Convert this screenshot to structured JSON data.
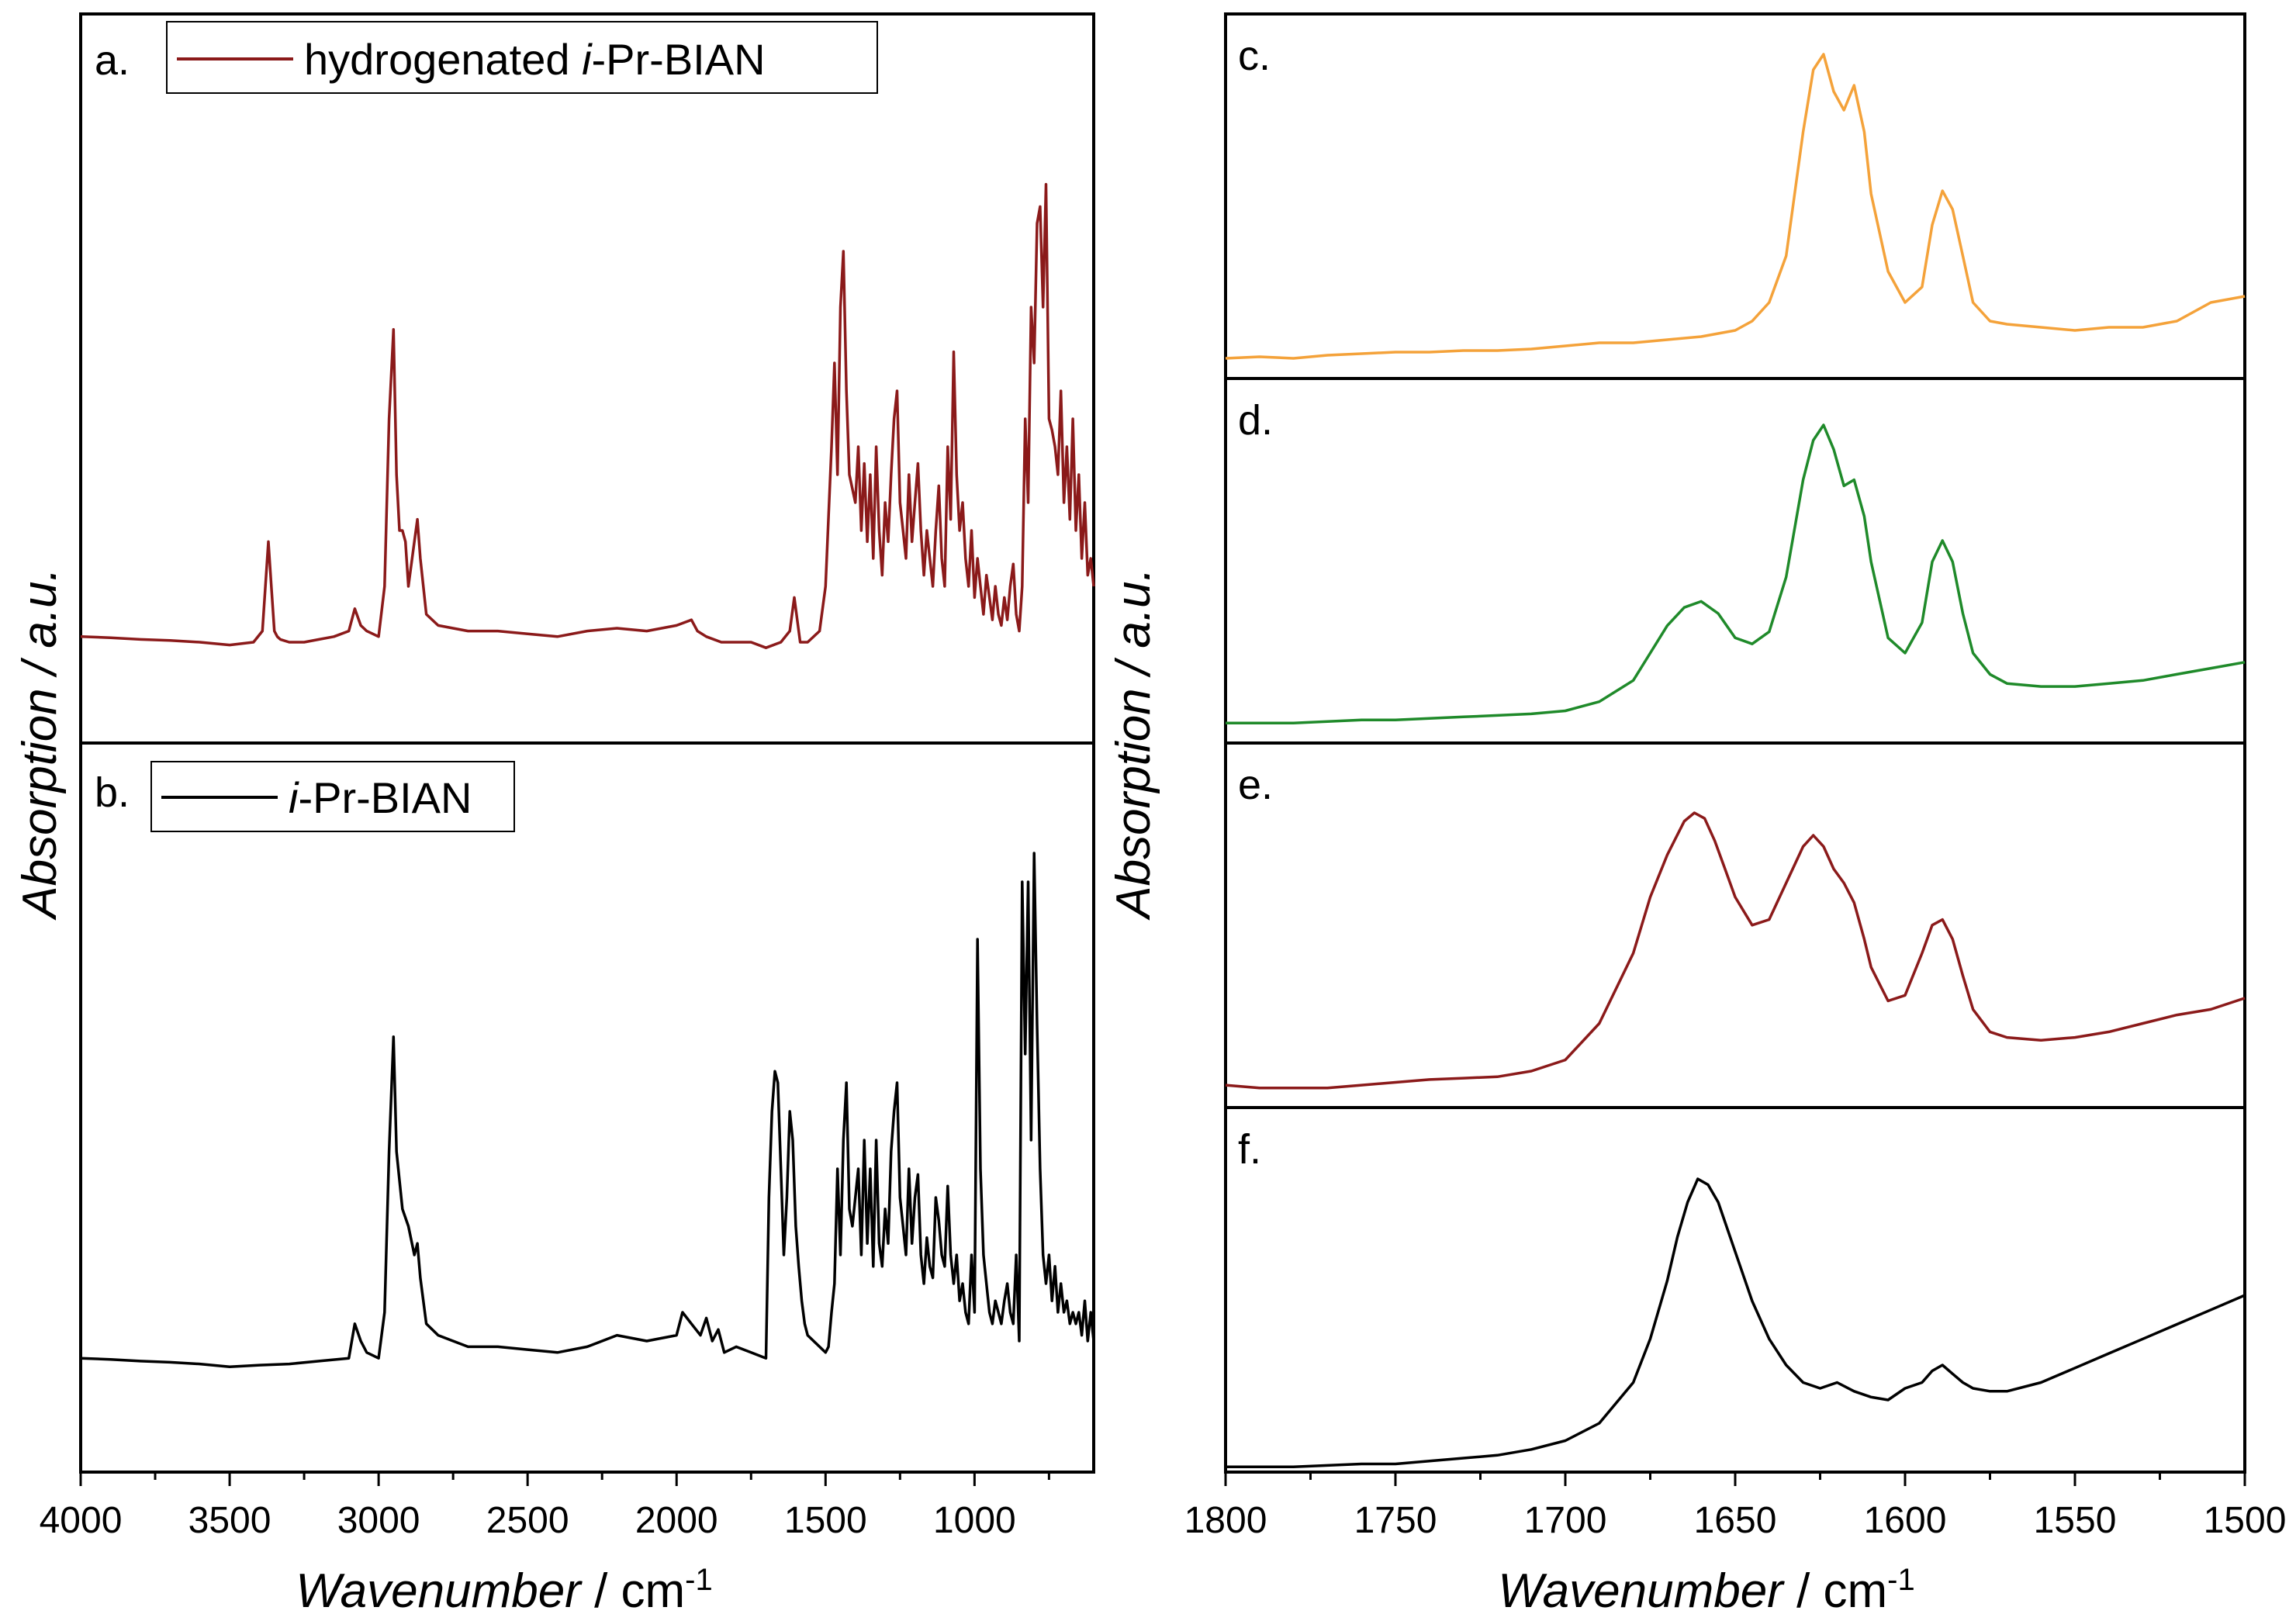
{
  "figure": {
    "left_ylabel": "Absorption / a.u.",
    "right_ylabel": "Absorption / a.u.",
    "left_xlabel_italic": "Wavenumber",
    "left_xlabel_rest": " / cm",
    "left_xlabel_sup": "-1",
    "right_xlabel_italic": "Wavenumber",
    "right_xlabel_rest": " / cm",
    "right_xlabel_sup": "-1"
  },
  "chart_data": [
    {
      "panel": "a.",
      "type": "line",
      "legend": {
        "prefix": "hydrogenated ",
        "italic": "i",
        "suffix": "-Pr-BIAN"
      },
      "color": "#8b1a1a",
      "xlim": [
        4000,
        600
      ],
      "ylim": [
        0,
        1
      ],
      "x": [
        4000,
        3900,
        3800,
        3700,
        3600,
        3500,
        3420,
        3390,
        3370,
        3360,
        3350,
        3340,
        3330,
        3300,
        3250,
        3200,
        3150,
        3100,
        3080,
        3060,
        3040,
        3000,
        2980,
        2965,
        2950,
        2940,
        2930,
        2920,
        2910,
        2900,
        2880,
        2870,
        2860,
        2840,
        2800,
        2750,
        2700,
        2600,
        2500,
        2400,
        2300,
        2200,
        2100,
        2000,
        1950,
        1930,
        1900,
        1850,
        1800,
        1750,
        1700,
        1650,
        1620,
        1605,
        1595,
        1585,
        1560,
        1520,
        1500,
        1480,
        1470,
        1460,
        1450,
        1440,
        1430,
        1420,
        1400,
        1390,
        1380,
        1370,
        1360,
        1350,
        1340,
        1330,
        1320,
        1310,
        1300,
        1290,
        1280,
        1270,
        1260,
        1250,
        1240,
        1230,
        1220,
        1210,
        1200,
        1190,
        1180,
        1170,
        1160,
        1150,
        1140,
        1130,
        1120,
        1110,
        1100,
        1090,
        1080,
        1070,
        1060,
        1050,
        1040,
        1030,
        1020,
        1010,
        1000,
        990,
        980,
        970,
        960,
        950,
        940,
        930,
        920,
        910,
        900,
        890,
        880,
        870,
        860,
        850,
        840,
        830,
        820,
        810,
        800,
        790,
        780,
        770,
        760,
        750,
        740,
        730,
        720,
        710,
        700,
        690,
        680,
        670,
        660,
        650,
        640,
        630,
        620,
        610,
        600
      ],
      "values": [
        0.11,
        0.108,
        0.105,
        0.103,
        0.1,
        0.095,
        0.1,
        0.12,
        0.28,
        0.2,
        0.12,
        0.11,
        0.105,
        0.1,
        0.1,
        0.105,
        0.11,
        0.12,
        0.16,
        0.13,
        0.12,
        0.11,
        0.2,
        0.5,
        0.66,
        0.4,
        0.3,
        0.3,
        0.28,
        0.2,
        0.28,
        0.32,
        0.25,
        0.15,
        0.13,
        0.125,
        0.12,
        0.12,
        0.115,
        0.11,
        0.12,
        0.125,
        0.12,
        0.13,
        0.14,
        0.12,
        0.11,
        0.1,
        0.1,
        0.1,
        0.09,
        0.1,
        0.12,
        0.18,
        0.14,
        0.1,
        0.1,
        0.12,
        0.2,
        0.45,
        0.6,
        0.4,
        0.7,
        0.8,
        0.55,
        0.4,
        0.35,
        0.45,
        0.3,
        0.42,
        0.28,
        0.4,
        0.25,
        0.45,
        0.3,
        0.22,
        0.35,
        0.28,
        0.4,
        0.5,
        0.55,
        0.35,
        0.3,
        0.25,
        0.4,
        0.28,
        0.35,
        0.42,
        0.3,
        0.22,
        0.3,
        0.25,
        0.2,
        0.3,
        0.38,
        0.25,
        0.2,
        0.45,
        0.32,
        0.62,
        0.4,
        0.3,
        0.35,
        0.25,
        0.2,
        0.3,
        0.18,
        0.25,
        0.2,
        0.15,
        0.22,
        0.18,
        0.14,
        0.2,
        0.15,
        0.13,
        0.18,
        0.14,
        0.2,
        0.24,
        0.15,
        0.12,
        0.2,
        0.5,
        0.35,
        0.7,
        0.6,
        0.85,
        0.88,
        0.7,
        0.92,
        0.5,
        0.48,
        0.45,
        0.4,
        0.55,
        0.35,
        0.45,
        0.32,
        0.5,
        0.3,
        0.4,
        0.25,
        0.35,
        0.22,
        0.25,
        0.2
      ]
    },
    {
      "panel": "b.",
      "type": "line",
      "legend": {
        "prefix": "",
        "italic": "i",
        "suffix": "-Pr-BIAN"
      },
      "color": "#000000",
      "xlim": [
        4000,
        600
      ],
      "ylim": [
        0,
        1
      ],
      "x": [
        4000,
        3900,
        3800,
        3700,
        3600,
        3500,
        3400,
        3300,
        3200,
        3100,
        3080,
        3060,
        3040,
        3000,
        2980,
        2965,
        2950,
        2940,
        2920,
        2900,
        2880,
        2870,
        2860,
        2840,
        2800,
        2750,
        2700,
        2600,
        2500,
        2400,
        2300,
        2200,
        2100,
        2000,
        1980,
        1950,
        1920,
        1900,
        1880,
        1860,
        1840,
        1800,
        1750,
        1700,
        1690,
        1680,
        1670,
        1660,
        1650,
        1640,
        1630,
        1620,
        1610,
        1600,
        1590,
        1580,
        1570,
        1560,
        1540,
        1520,
        1500,
        1490,
        1480,
        1470,
        1460,
        1450,
        1440,
        1430,
        1420,
        1410,
        1400,
        1390,
        1380,
        1370,
        1360,
        1350,
        1340,
        1330,
        1320,
        1310,
        1300,
        1290,
        1280,
        1270,
        1260,
        1250,
        1240,
        1230,
        1220,
        1210,
        1200,
        1190,
        1180,
        1170,
        1160,
        1150,
        1140,
        1130,
        1120,
        1110,
        1100,
        1090,
        1080,
        1070,
        1060,
        1050,
        1040,
        1030,
        1020,
        1010,
        1000,
        990,
        980,
        970,
        960,
        950,
        940,
        930,
        920,
        910,
        900,
        890,
        880,
        870,
        860,
        850,
        840,
        830,
        820,
        810,
        800,
        790,
        780,
        770,
        760,
        750,
        740,
        730,
        720,
        710,
        700,
        690,
        680,
        670,
        660,
        650,
        640,
        630,
        620,
        610,
        600
      ],
      "values": [
        0.12,
        0.118,
        0.115,
        0.113,
        0.11,
        0.105,
        0.108,
        0.11,
        0.115,
        0.12,
        0.18,
        0.15,
        0.13,
        0.12,
        0.2,
        0.48,
        0.68,
        0.48,
        0.38,
        0.35,
        0.3,
        0.32,
        0.26,
        0.18,
        0.16,
        0.15,
        0.14,
        0.14,
        0.135,
        0.13,
        0.14,
        0.16,
        0.15,
        0.16,
        0.2,
        0.18,
        0.16,
        0.19,
        0.15,
        0.17,
        0.13,
        0.14,
        0.13,
        0.12,
        0.4,
        0.55,
        0.62,
        0.6,
        0.45,
        0.3,
        0.4,
        0.55,
        0.5,
        0.35,
        0.28,
        0.22,
        0.18,
        0.16,
        0.15,
        0.14,
        0.13,
        0.14,
        0.2,
        0.25,
        0.45,
        0.3,
        0.5,
        0.6,
        0.38,
        0.35,
        0.4,
        0.45,
        0.3,
        0.5,
        0.32,
        0.45,
        0.28,
        0.5,
        0.32,
        0.28,
        0.38,
        0.32,
        0.48,
        0.55,
        0.6,
        0.4,
        0.35,
        0.3,
        0.45,
        0.32,
        0.4,
        0.44,
        0.3,
        0.25,
        0.33,
        0.28,
        0.26,
        0.4,
        0.36,
        0.3,
        0.28,
        0.42,
        0.3,
        0.25,
        0.3,
        0.22,
        0.25,
        0.2,
        0.18,
        0.3,
        0.2,
        0.85,
        0.45,
        0.3,
        0.25,
        0.2,
        0.18,
        0.22,
        0.2,
        0.18,
        0.22,
        0.25,
        0.2,
        0.18,
        0.3,
        0.15,
        0.95,
        0.65,
        0.95,
        0.5,
        1.0,
        0.7,
        0.45,
        0.3,
        0.25,
        0.3,
        0.22,
        0.28,
        0.2,
        0.25,
        0.2,
        0.22,
        0.18,
        0.2,
        0.18,
        0.2,
        0.16,
        0.22,
        0.15,
        0.2,
        0.15
      ]
    },
    {
      "panel": "c.",
      "type": "line",
      "color": "#f4a23a",
      "xlim": [
        1800,
        1500
      ],
      "ylim": [
        0,
        1
      ],
      "x": [
        1800,
        1790,
        1780,
        1770,
        1760,
        1750,
        1740,
        1730,
        1720,
        1710,
        1700,
        1690,
        1680,
        1670,
        1660,
        1650,
        1645,
        1640,
        1635,
        1630,
        1627,
        1624,
        1621,
        1618,
        1615,
        1612,
        1610,
        1605,
        1600,
        1595,
        1592,
        1589,
        1586,
        1583,
        1580,
        1575,
        1570,
        1560,
        1550,
        1540,
        1530,
        1520,
        1510,
        1500
      ],
      "values": [
        0.02,
        0.025,
        0.02,
        0.03,
        0.035,
        0.04,
        0.04,
        0.045,
        0.045,
        0.05,
        0.06,
        0.07,
        0.07,
        0.08,
        0.09,
        0.11,
        0.14,
        0.2,
        0.35,
        0.75,
        0.95,
        1.0,
        0.88,
        0.82,
        0.9,
        0.75,
        0.55,
        0.3,
        0.2,
        0.25,
        0.45,
        0.56,
        0.5,
        0.35,
        0.2,
        0.14,
        0.13,
        0.12,
        0.11,
        0.12,
        0.12,
        0.14,
        0.2,
        0.22
      ]
    },
    {
      "panel": "d.",
      "type": "line",
      "color": "#1f8a2a",
      "xlim": [
        1800,
        1500
      ],
      "ylim": [
        0,
        1
      ],
      "x": [
        1800,
        1790,
        1780,
        1770,
        1760,
        1750,
        1740,
        1730,
        1720,
        1710,
        1700,
        1690,
        1680,
        1675,
        1670,
        1665,
        1660,
        1655,
        1650,
        1645,
        1640,
        1635,
        1630,
        1627,
        1624,
        1621,
        1618,
        1615,
        1612,
        1610,
        1605,
        1600,
        1595,
        1592,
        1589,
        1586,
        1583,
        1580,
        1575,
        1570,
        1560,
        1550,
        1540,
        1530,
        1520,
        1510,
        1500
      ],
      "values": [
        0.02,
        0.02,
        0.02,
        0.025,
        0.03,
        0.03,
        0.035,
        0.04,
        0.045,
        0.05,
        0.06,
        0.09,
        0.16,
        0.25,
        0.34,
        0.4,
        0.42,
        0.38,
        0.3,
        0.28,
        0.32,
        0.5,
        0.82,
        0.95,
        1.0,
        0.92,
        0.8,
        0.82,
        0.7,
        0.55,
        0.3,
        0.25,
        0.35,
        0.55,
        0.62,
        0.55,
        0.38,
        0.25,
        0.18,
        0.15,
        0.14,
        0.14,
        0.15,
        0.16,
        0.18,
        0.2,
        0.22
      ]
    },
    {
      "panel": "e.",
      "type": "line",
      "color": "#8b1a1a",
      "xlim": [
        1800,
        1500
      ],
      "ylim": [
        0,
        1
      ],
      "x": [
        1800,
        1790,
        1780,
        1770,
        1760,
        1750,
        1740,
        1730,
        1720,
        1710,
        1700,
        1690,
        1680,
        1675,
        1670,
        1665,
        1662,
        1659,
        1656,
        1653,
        1650,
        1645,
        1640,
        1635,
        1630,
        1627,
        1624,
        1621,
        1618,
        1615,
        1612,
        1610,
        1605,
        1600,
        1595,
        1592,
        1589,
        1586,
        1583,
        1580,
        1575,
        1570,
        1560,
        1550,
        1540,
        1530,
        1520,
        1510,
        1500
      ],
      "values": [
        0.03,
        0.02,
        0.02,
        0.02,
        0.03,
        0.04,
        0.05,
        0.055,
        0.06,
        0.08,
        0.12,
        0.25,
        0.5,
        0.7,
        0.85,
        0.97,
        1.0,
        0.98,
        0.9,
        0.8,
        0.7,
        0.6,
        0.62,
        0.75,
        0.88,
        0.92,
        0.88,
        0.8,
        0.75,
        0.68,
        0.55,
        0.45,
        0.33,
        0.35,
        0.5,
        0.6,
        0.62,
        0.55,
        0.42,
        0.3,
        0.22,
        0.2,
        0.19,
        0.2,
        0.22,
        0.25,
        0.28,
        0.3,
        0.34
      ]
    },
    {
      "panel": "f.",
      "type": "line",
      "color": "#000000",
      "xlim": [
        1800,
        1500
      ],
      "ylim": [
        0,
        1
      ],
      "x": [
        1800,
        1790,
        1780,
        1770,
        1760,
        1750,
        1740,
        1730,
        1720,
        1710,
        1700,
        1690,
        1680,
        1675,
        1670,
        1667,
        1664,
        1661,
        1658,
        1655,
        1650,
        1645,
        1640,
        1635,
        1630,
        1625,
        1620,
        1615,
        1610,
        1605,
        1600,
        1595,
        1592,
        1589,
        1586,
        1583,
        1580,
        1575,
        1570,
        1560,
        1550,
        1540,
        1530,
        1520,
        1510,
        1500
      ],
      "values": [
        0.01,
        0.01,
        0.01,
        0.015,
        0.02,
        0.02,
        0.03,
        0.04,
        0.05,
        0.07,
        0.1,
        0.16,
        0.3,
        0.45,
        0.65,
        0.8,
        0.92,
        1.0,
        0.98,
        0.92,
        0.75,
        0.58,
        0.45,
        0.36,
        0.3,
        0.28,
        0.3,
        0.27,
        0.25,
        0.24,
        0.28,
        0.3,
        0.34,
        0.36,
        0.33,
        0.3,
        0.28,
        0.27,
        0.27,
        0.3,
        0.35,
        0.4,
        0.45,
        0.5,
        0.55,
        0.6
      ]
    }
  ]
}
